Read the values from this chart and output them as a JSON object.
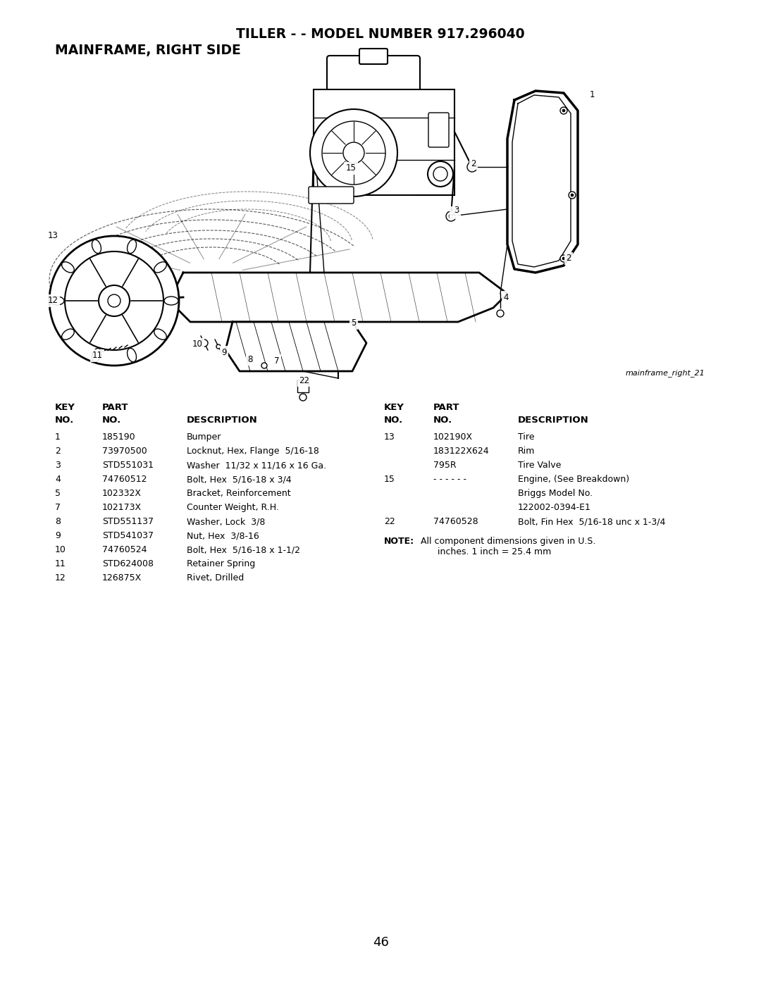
{
  "title_line1": "TILLER - - MODEL NUMBER 917.296040",
  "title_line2": "MAINFRAME, RIGHT SIDE",
  "image_label": "mainframe_right_21",
  "page_number": "46",
  "background_color": "#ffffff",
  "text_color": "#000000",
  "left_table": {
    "rows": [
      [
        "1",
        "185190",
        "Bumper"
      ],
      [
        "2",
        "73970500",
        "Locknut, Hex, Flange  5/16-18"
      ],
      [
        "3",
        "STD551031",
        "Washer  11/32 x 11/16 x 16 Ga."
      ],
      [
        "4",
        "74760512",
        "Bolt, Hex  5/16-18 x 3/4"
      ],
      [
        "5",
        "102332X",
        "Bracket, Reinforcement"
      ],
      [
        "7",
        "102173X",
        "Counter Weight, R.H."
      ],
      [
        "8",
        "STD551137",
        "Washer, Lock  3/8"
      ],
      [
        "9",
        "STD541037",
        "Nut, Hex  3/8-16"
      ],
      [
        "10",
        "74760524",
        "Bolt, Hex  5/16-18 x 1-1/2"
      ],
      [
        "11",
        "STD624008",
        "Retainer Spring"
      ],
      [
        "12",
        "126875X",
        "Rivet, Drilled"
      ]
    ]
  },
  "right_table": {
    "rows": [
      [
        "13",
        "102190X",
        "Tire"
      ],
      [
        "",
        "183122X624",
        "Rim"
      ],
      [
        "",
        "795R",
        "Tire Valve"
      ],
      [
        "15",
        "- - - - - -",
        "Engine, (See Breakdown)"
      ],
      [
        "",
        "",
        "Briggs Model No."
      ],
      [
        "",
        "",
        "122002-0394-E1"
      ],
      [
        "22",
        "74760528",
        "Bolt, Fin Hex  5/16-18 unc x 1-3/4"
      ]
    ]
  },
  "note_bold": "NOTE:",
  "note_rest": " All component dimensions given in U.S.\n       inches. 1 inch = 25.4 mm"
}
